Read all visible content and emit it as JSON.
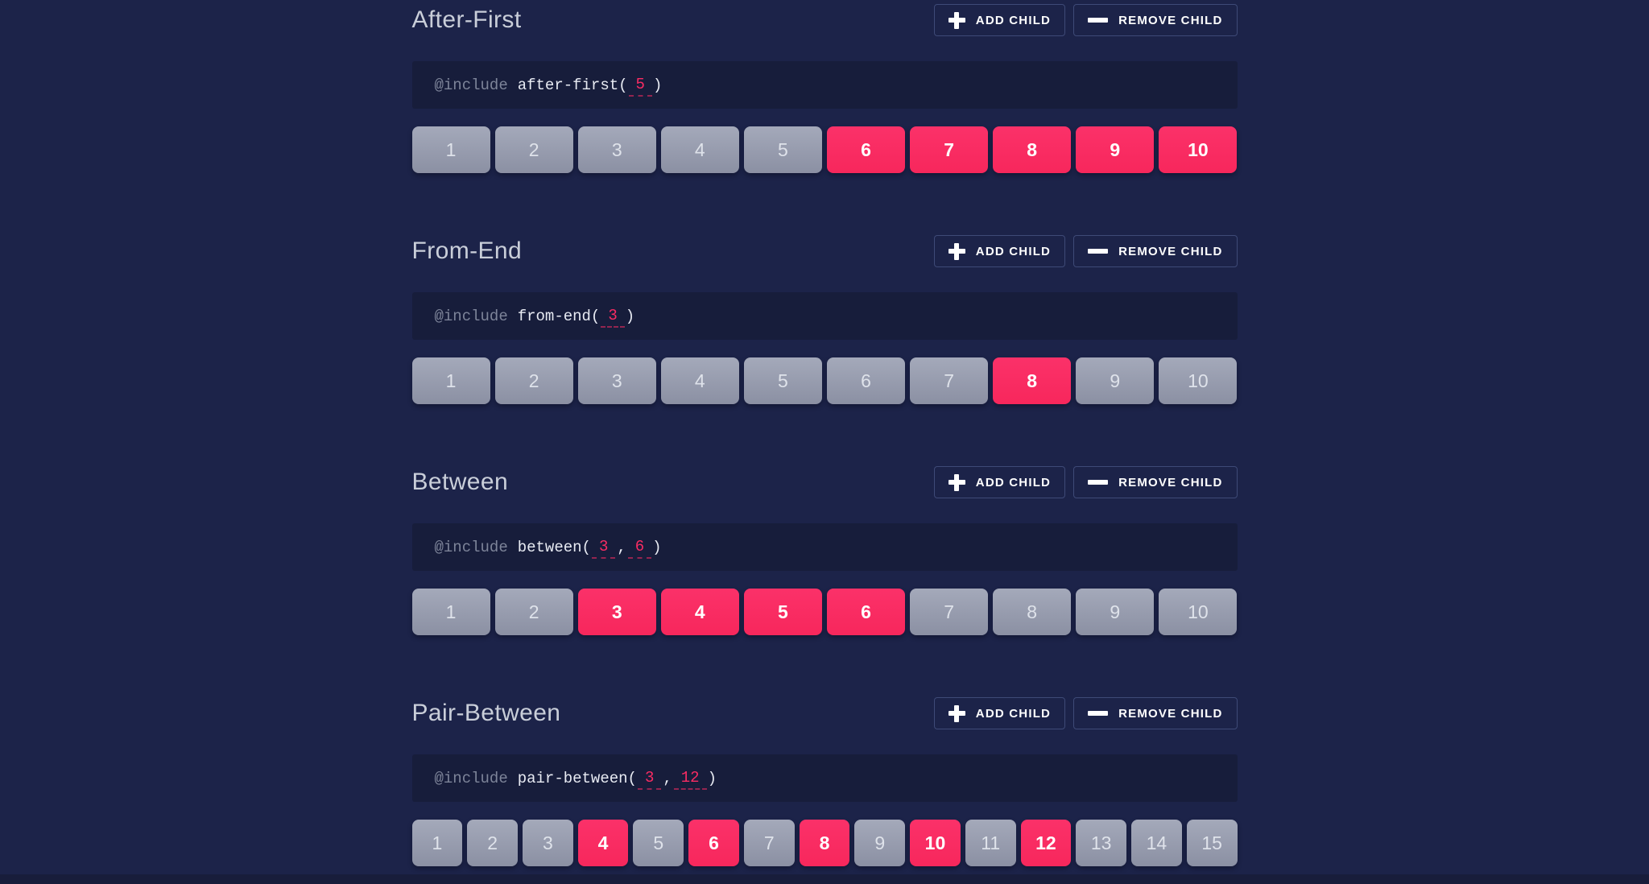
{
  "colors": {
    "background": "#1c2349",
    "code_background": "#171d3b",
    "accent_pink": "#f92c63",
    "box_gray": "#969cb0",
    "button_border": "#3e4a77",
    "title_text": "#c9ced9"
  },
  "controls": {
    "add_label": "ADD CHILD",
    "remove_label": "REMOVE CHILD",
    "add_icon": "plus-icon",
    "remove_icon": "minus-icon"
  },
  "sections": [
    {
      "title": "After-First",
      "code": {
        "keyword": "@include",
        "fn": "after-first(",
        "arg1": "5",
        "close": ")"
      },
      "boxes": {
        "count": 10,
        "active": [
          6,
          7,
          8,
          9,
          10
        ]
      }
    },
    {
      "title": "From-End",
      "code": {
        "keyword": "@include",
        "fn": "from-end(",
        "arg1": "3",
        "close": ")"
      },
      "boxes": {
        "count": 10,
        "active": [
          8
        ]
      }
    },
    {
      "title": "Between",
      "code": {
        "keyword": "@include",
        "fn": "between(",
        "arg1": "3",
        "comma": ",",
        "arg2": "6",
        "close": ")"
      },
      "boxes": {
        "count": 10,
        "active": [
          3,
          4,
          5,
          6
        ]
      }
    },
    {
      "title": "Pair-Between",
      "code": {
        "keyword": "@include",
        "fn": "pair-between(",
        "arg1": "3",
        "comma": ",",
        "arg2": "12",
        "close": ")"
      },
      "boxes": {
        "count": 15,
        "active": [
          4,
          6,
          8,
          10,
          12
        ]
      }
    }
  ]
}
